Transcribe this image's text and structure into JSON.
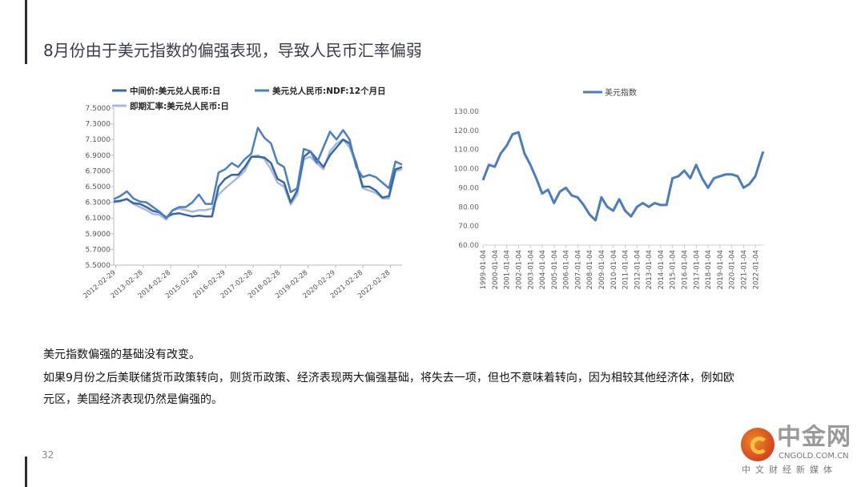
{
  "title": "8月份由于美元指数的偏强表现，导致人民币汇率偏弱",
  "body": {
    "line1": "美元指数偏强的基础没有改变。",
    "line2": "如果9月份之后美联储货币政策转向，则货币政策、经济表现两大偏强基础，将失去一项，但也不意味着转向，因为相较其他经济体，例如欧",
    "line3": "元区，美国经济表现仍然是偏强的。"
  },
  "page_number": "32",
  "logo": {
    "main": "中金网",
    "url": "CNGOLD.COM.CN",
    "sub": "中文财经新媒体"
  },
  "chart_data": [
    {
      "type": "line",
      "title": "",
      "ylim": [
        5.5,
        7.5
      ],
      "yticks": [
        "7.5000",
        "7.3000",
        "7.1000",
        "6.9000",
        "6.7000",
        "6.5000",
        "6.3000",
        "6.1000",
        "5.9000",
        "5.7000",
        "5.5000"
      ],
      "xticks": [
        "2012-02-29",
        "2013-02-28",
        "2014-02-28",
        "2015-02-28",
        "2016-02-29",
        "2017-02-28",
        "2018-02-28",
        "2019-02-28",
        "2020-02-29",
        "2021-02-28",
        "2022-02-28"
      ],
      "xrange": [
        "2012-02",
        "2022-08"
      ],
      "legend_position": "top",
      "series": [
        {
          "name": "中间价:美元兑人民币:日",
          "color": "#3566a8",
          "values": [
            6.31,
            6.32,
            6.34,
            6.29,
            6.28,
            6.24,
            6.19,
            6.17,
            6.11,
            6.15,
            6.16,
            6.14,
            6.12,
            6.13,
            6.12,
            6.12,
            6.5,
            6.6,
            6.65,
            6.65,
            6.75,
            6.88,
            6.88,
            6.87,
            6.8,
            6.6,
            6.55,
            6.3,
            6.45,
            6.88,
            6.95,
            6.85,
            6.75,
            6.9,
            7.0,
            7.1,
            7.05,
            6.8,
            6.5,
            6.5,
            6.45,
            6.36,
            6.38,
            6.72,
            6.75
          ]
        },
        {
          "name": "美元兑人民币:NDF:12个月日",
          "color": "#4a7fc4",
          "values": [
            6.34,
            6.38,
            6.44,
            6.35,
            6.31,
            6.3,
            6.24,
            6.18,
            6.1,
            6.2,
            6.24,
            6.24,
            6.3,
            6.4,
            6.28,
            6.28,
            6.68,
            6.72,
            6.8,
            6.75,
            6.85,
            6.92,
            7.25,
            7.12,
            7.05,
            6.8,
            6.75,
            6.43,
            6.48,
            6.98,
            6.95,
            6.8,
            7.0,
            7.2,
            7.1,
            7.22,
            7.1,
            6.75,
            6.62,
            6.65,
            6.62,
            6.55,
            6.48,
            6.82,
            6.78
          ]
        },
        {
          "name": "即期汇率:美元兑人民币:日",
          "color": "#a9b9dc",
          "values": [
            6.3,
            6.31,
            6.35,
            6.28,
            6.24,
            6.2,
            6.15,
            6.14,
            6.08,
            6.2,
            6.22,
            6.2,
            6.18,
            6.2,
            6.2,
            6.22,
            6.4,
            6.48,
            6.55,
            6.62,
            6.7,
            6.88,
            6.9,
            6.85,
            6.72,
            6.55,
            6.5,
            6.27,
            6.4,
            6.85,
            6.88,
            6.8,
            6.72,
            6.95,
            7.05,
            7.1,
            7.0,
            6.78,
            6.48,
            6.45,
            6.42,
            6.35,
            6.35,
            6.7,
            6.72
          ]
        }
      ]
    },
    {
      "type": "line",
      "title": "",
      "ylim": [
        60,
        130
      ],
      "yticks": [
        "130.00",
        "120.00",
        "110.00",
        "100.00",
        "90.00",
        "80.00",
        "70.00",
        "60.00"
      ],
      "xticks": [
        "1999-01-04",
        "2000-01-04",
        "2001-01-04",
        "2002-01-04",
        "2003-01-04",
        "2004-01-04",
        "2005-01-04",
        "2006-01-04",
        "2007-01-04",
        "2008-01-04",
        "2009-01-04",
        "2010-01-04",
        "2011-01-04",
        "2012-01-04",
        "2013-01-04",
        "2014-01-04",
        "2015-01-04",
        "2016-01-04",
        "2017-01-04",
        "2018-01-04",
        "2019-01-04",
        "2020-01-04",
        "2021-01-04",
        "2022-01-04"
      ],
      "legend_position": "top",
      "series": [
        {
          "name": "美元指数",
          "color": "#4a7cbf",
          "x": [
            "1999-01",
            "1999-07",
            "2000-01",
            "2000-07",
            "2001-01",
            "2001-07",
            "2002-01",
            "2002-07",
            "2003-01",
            "2003-07",
            "2004-01",
            "2004-07",
            "2005-01",
            "2005-07",
            "2006-01",
            "2006-07",
            "2007-01",
            "2007-07",
            "2008-01",
            "2008-07",
            "2009-01",
            "2009-07",
            "2010-01",
            "2010-07",
            "2011-01",
            "2011-07",
            "2012-01",
            "2012-07",
            "2013-01",
            "2013-07",
            "2014-01",
            "2014-07",
            "2015-01",
            "2015-07",
            "2016-01",
            "2016-07",
            "2017-01",
            "2017-07",
            "2018-01",
            "2018-07",
            "2019-01",
            "2019-07",
            "2020-01",
            "2020-07",
            "2021-01",
            "2021-07",
            "2022-01",
            "2022-07",
            "2022-09"
          ],
          "values": [
            94,
            102,
            101,
            108,
            112,
            118,
            119,
            108,
            102,
            95,
            87,
            89,
            82,
            88,
            90,
            86,
            85,
            81,
            76,
            73,
            85,
            80,
            78,
            84,
            78,
            75,
            80,
            82,
            80,
            82,
            81,
            81,
            95,
            96,
            99,
            95,
            102,
            95,
            90,
            95,
            96,
            97,
            97,
            96,
            90,
            92,
            96,
            106,
            109
          ]
        }
      ]
    }
  ]
}
